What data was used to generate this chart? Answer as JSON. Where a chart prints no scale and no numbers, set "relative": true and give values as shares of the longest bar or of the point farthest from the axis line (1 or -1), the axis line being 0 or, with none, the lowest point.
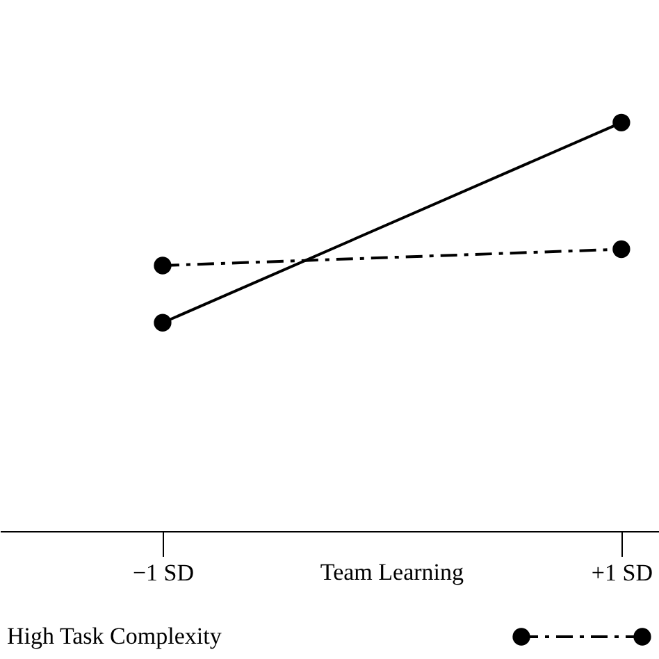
{
  "chart_data": {
    "type": "line",
    "relative": true,
    "xlabel": "Team Learning",
    "categories": [
      "−1 SD",
      "+1 SD"
    ],
    "series": [
      {
        "color": "#000000",
        "line_style": "solid",
        "values": [
          0.51,
          1
        ]
      },
      {
        "name": "High Task Complexity",
        "color": "#000000",
        "line_style": "dashed",
        "values": [
          0.65,
          0.69
        ]
      }
    ],
    "marker": "circle",
    "legend": "bottom",
    "grid": false
  }
}
